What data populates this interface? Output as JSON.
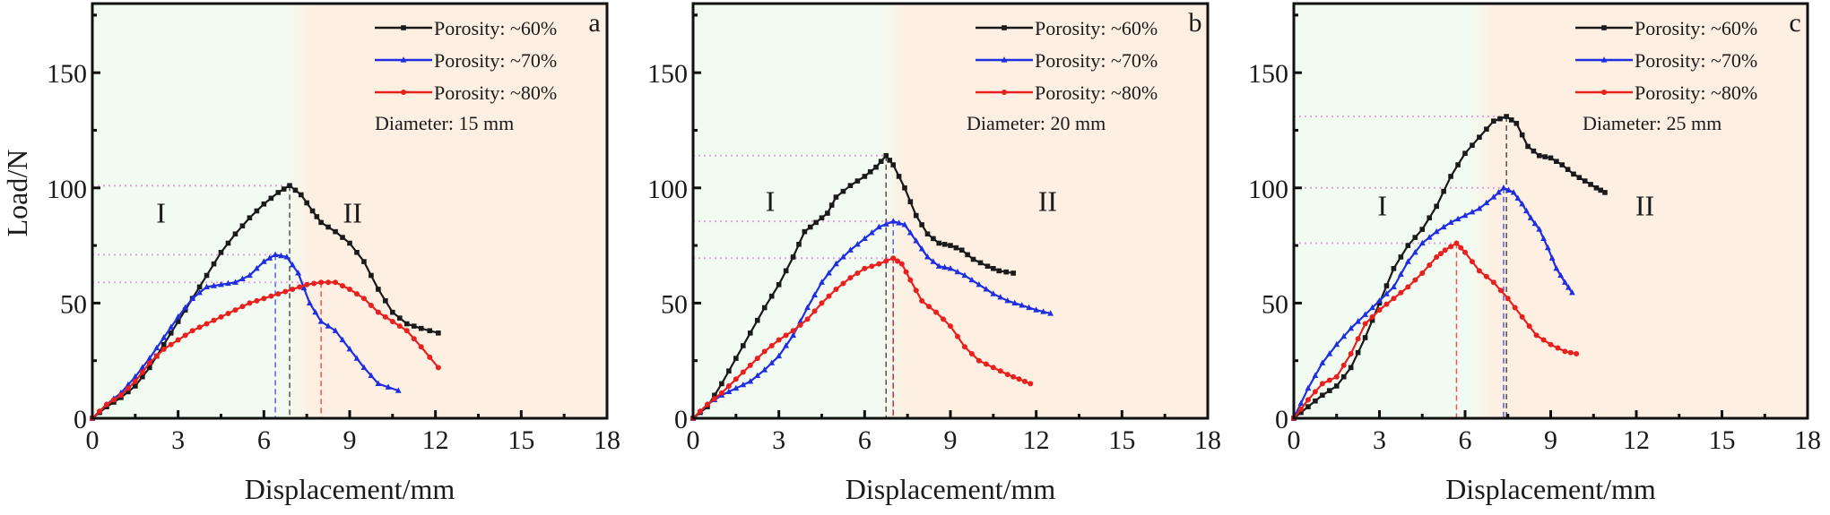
{
  "chart_data": [
    {
      "type": "line",
      "panel_label": "a",
      "xlabel": "Displacement/mm",
      "ylabel": "Load/N",
      "xlim": [
        0,
        18
      ],
      "ylim": [
        0,
        180
      ],
      "xticks": [
        0,
        3,
        6,
        9,
        12,
        15,
        18
      ],
      "yticks": [
        0,
        50,
        100,
        150
      ],
      "grid": false,
      "legend_position": "top-right",
      "annotation": "Diameter: 15 mm",
      "regions": [
        {
          "label": "I",
          "x_range": [
            0,
            7.1
          ],
          "color": "#f1fbf1",
          "label_pos": [
            2.4,
            85
          ]
        },
        {
          "label": "II",
          "x_range": [
            7.1,
            18
          ],
          "color": "#fdf0e2",
          "label_pos": [
            9.1,
            85
          ]
        }
      ],
      "series": [
        {
          "name": "Porosity: ~60%",
          "color": "#1a1a1a",
          "marker": "square",
          "peak": [
            6.9,
            101
          ],
          "x": [
            0,
            0.5,
            1.0,
            1.5,
            2.0,
            2.5,
            3.0,
            3.5,
            4.0,
            4.5,
            5.0,
            5.5,
            6.0,
            6.5,
            6.9,
            7.3,
            7.7,
            8.0,
            8.5,
            9.0,
            9.5,
            10.0,
            10.5,
            11.0,
            11.5,
            12.1
          ],
          "y": [
            0,
            5,
            9,
            14,
            22,
            32,
            42,
            52,
            62,
            72,
            80,
            87,
            93,
            98,
            101,
            97,
            90,
            85,
            81,
            76,
            68,
            56,
            46,
            41,
            39,
            37
          ]
        },
        {
          "name": "Porosity: ~70%",
          "color": "#1f2ee0",
          "marker": "triangle",
          "peak": [
            6.4,
            71
          ],
          "x": [
            0,
            0.5,
            1.0,
            1.5,
            2.0,
            2.5,
            3.0,
            3.5,
            4.0,
            4.5,
            5.0,
            5.5,
            6.0,
            6.4,
            6.8,
            7.2,
            7.6,
            8.0,
            8.5,
            9.0,
            9.5,
            10.0,
            10.7
          ],
          "y": [
            0,
            6,
            11,
            18,
            26,
            35,
            44,
            52,
            57,
            58,
            59,
            62,
            68,
            71,
            70,
            63,
            50,
            42,
            38,
            30,
            22,
            15,
            12
          ]
        },
        {
          "name": "Porosity: ~80%",
          "color": "#e8201e",
          "marker": "circle",
          "peak": [
            8.0,
            59
          ],
          "x": [
            0,
            0.5,
            1.0,
            1.5,
            2.0,
            2.5,
            3.0,
            3.5,
            4.0,
            4.5,
            5.0,
            5.5,
            6.0,
            6.5,
            7.0,
            7.5,
            8.0,
            8.5,
            9.0,
            9.5,
            10.0,
            10.5,
            11.0,
            11.5,
            12.1
          ],
          "y": [
            0,
            6,
            10,
            16,
            24,
            30,
            34,
            38,
            41,
            44,
            47,
            50,
            52,
            54,
            56,
            58,
            59,
            59,
            56,
            52,
            46,
            42,
            38,
            31,
            22
          ]
        }
      ]
    },
    {
      "type": "line",
      "panel_label": "b",
      "xlabel": "Displacement/mm",
      "ylabel": "",
      "xlim": [
        0,
        18
      ],
      "ylim": [
        0,
        180
      ],
      "xticks": [
        0,
        3,
        6,
        9,
        12,
        15,
        18
      ],
      "yticks": [
        0,
        50,
        100,
        150
      ],
      "grid": false,
      "legend_position": "top-right",
      "annotation": "Diameter: 20 mm",
      "regions": [
        {
          "label": "I",
          "x_range": [
            0,
            6.9
          ],
          "color": "#f1fbf1",
          "label_pos": [
            2.7,
            90
          ]
        },
        {
          "label": "II",
          "x_range": [
            6.9,
            18
          ],
          "color": "#fdf0e2",
          "label_pos": [
            12.4,
            90
          ]
        }
      ],
      "series": [
        {
          "name": "Porosity: ~60%",
          "color": "#1a1a1a",
          "marker": "square",
          "peak": [
            6.75,
            114
          ],
          "x": [
            0,
            0.5,
            1.0,
            1.5,
            2.0,
            2.5,
            3.0,
            3.5,
            3.9,
            4.3,
            4.7,
            5.0,
            5.5,
            6.0,
            6.4,
            6.75,
            7.0,
            7.4,
            7.8,
            8.2,
            8.6,
            9.0,
            9.4,
            9.8,
            10.3,
            10.7,
            11.2
          ],
          "y": [
            0,
            5,
            15,
            26,
            37,
            48,
            58,
            70,
            81,
            85,
            89,
            96,
            101,
            105,
            109,
            114,
            110,
            100,
            88,
            80,
            76,
            75,
            73,
            69,
            66,
            64,
            63
          ]
        },
        {
          "name": "Porosity: ~70%",
          "color": "#1f2ee0",
          "marker": "triangle",
          "peak": [
            7.0,
            85.5
          ],
          "x": [
            0,
            0.5,
            1.0,
            1.5,
            2.0,
            2.5,
            3.0,
            3.5,
            4.0,
            4.5,
            5.0,
            5.5,
            6.0,
            6.5,
            7.0,
            7.4,
            7.8,
            8.2,
            8.6,
            9.0,
            9.5,
            10.0,
            10.5,
            11.0,
            11.5,
            12.0,
            12.5
          ],
          "y": [
            0,
            6,
            10,
            13,
            16,
            21,
            27,
            36,
            48,
            59,
            67,
            73,
            78,
            83,
            85.5,
            84,
            77,
            70,
            66,
            65,
            62,
            58,
            54,
            51,
            49,
            47,
            45.5
          ]
        },
        {
          "name": "Porosity: ~80%",
          "color": "#e8201e",
          "marker": "circle",
          "peak": [
            7.0,
            69.5
          ],
          "x": [
            0,
            0.5,
            1.0,
            1.5,
            2.0,
            2.5,
            3.0,
            3.5,
            4.0,
            4.5,
            5.0,
            5.5,
            6.0,
            6.5,
            7.0,
            7.3,
            7.6,
            8.0,
            8.5,
            9.0,
            9.5,
            10.0,
            10.5,
            11.0,
            11.4,
            11.8
          ],
          "y": [
            0,
            6,
            11,
            17,
            23,
            29,
            34,
            38,
            43,
            50,
            56,
            61,
            65,
            67,
            69.5,
            67,
            60,
            51,
            46,
            40,
            31,
            25,
            22,
            19,
            17,
            15
          ]
        }
      ]
    },
    {
      "type": "line",
      "panel_label": "c",
      "xlabel": "Displacement/mm",
      "ylabel": "",
      "xlim": [
        0,
        18
      ],
      "ylim": [
        0,
        180
      ],
      "xticks": [
        0,
        3,
        6,
        9,
        12,
        15,
        18
      ],
      "yticks": [
        0,
        50,
        100,
        150
      ],
      "grid": false,
      "legend_position": "top-right",
      "annotation": "Diameter: 25 mm",
      "regions": [
        {
          "label": "I",
          "x_range": [
            0,
            6.5
          ],
          "color": "#f1fbf1",
          "label_pos": [
            3.1,
            88
          ]
        },
        {
          "label": "II",
          "x_range": [
            6.5,
            18
          ],
          "color": "#fdf0e2",
          "label_pos": [
            12.3,
            88
          ]
        }
      ],
      "series": [
        {
          "name": "Porosity: ~60%",
          "color": "#1a1a1a",
          "marker": "square",
          "peak": [
            7.45,
            131
          ],
          "x": [
            0,
            0.5,
            1.0,
            1.5,
            2.0,
            2.5,
            3.0,
            3.5,
            4.0,
            4.5,
            5.0,
            5.5,
            6.0,
            6.5,
            7.0,
            7.45,
            7.8,
            8.2,
            8.6,
            9.0,
            9.4,
            9.8,
            10.2,
            10.6,
            10.9
          ],
          "y": [
            0,
            5,
            10,
            14,
            22,
            35,
            50,
            65,
            75,
            82,
            92,
            105,
            115,
            122,
            129,
            131,
            128,
            118,
            114,
            113,
            110,
            106,
            103,
            100,
            98
          ]
        },
        {
          "name": "Porosity: ~70%",
          "color": "#1f2ee0",
          "marker": "triangle",
          "peak": [
            7.35,
            100
          ],
          "x": [
            0,
            0.5,
            1.0,
            1.5,
            2.0,
            2.5,
            3.0,
            3.5,
            4.0,
            4.5,
            5.0,
            5.5,
            6.0,
            6.5,
            7.0,
            7.35,
            7.7,
            8.0,
            8.3,
            8.6,
            8.9,
            9.2,
            9.5,
            9.75
          ],
          "y": [
            0,
            13,
            24,
            32,
            39,
            45,
            51,
            57,
            68,
            76,
            81,
            85,
            88,
            91,
            96,
            100,
            98,
            93,
            87,
            82,
            74,
            65,
            59,
            54.5
          ]
        },
        {
          "name": "Porosity: ~80%",
          "color": "#e8201e",
          "marker": "circle",
          "peak": [
            5.7,
            76
          ],
          "x": [
            0,
            0.5,
            1.0,
            1.5,
            2.0,
            2.5,
            3.0,
            3.5,
            4.0,
            4.5,
            5.0,
            5.3,
            5.7,
            6.0,
            6.5,
            7.0,
            7.5,
            8.0,
            8.5,
            9.0,
            9.5,
            9.9
          ],
          "y": [
            0,
            8,
            15,
            18,
            28,
            41,
            47,
            52,
            57,
            63,
            70,
            73,
            76,
            72,
            64,
            59,
            52,
            44,
            36,
            32,
            29,
            28
          ]
        }
      ]
    }
  ]
}
